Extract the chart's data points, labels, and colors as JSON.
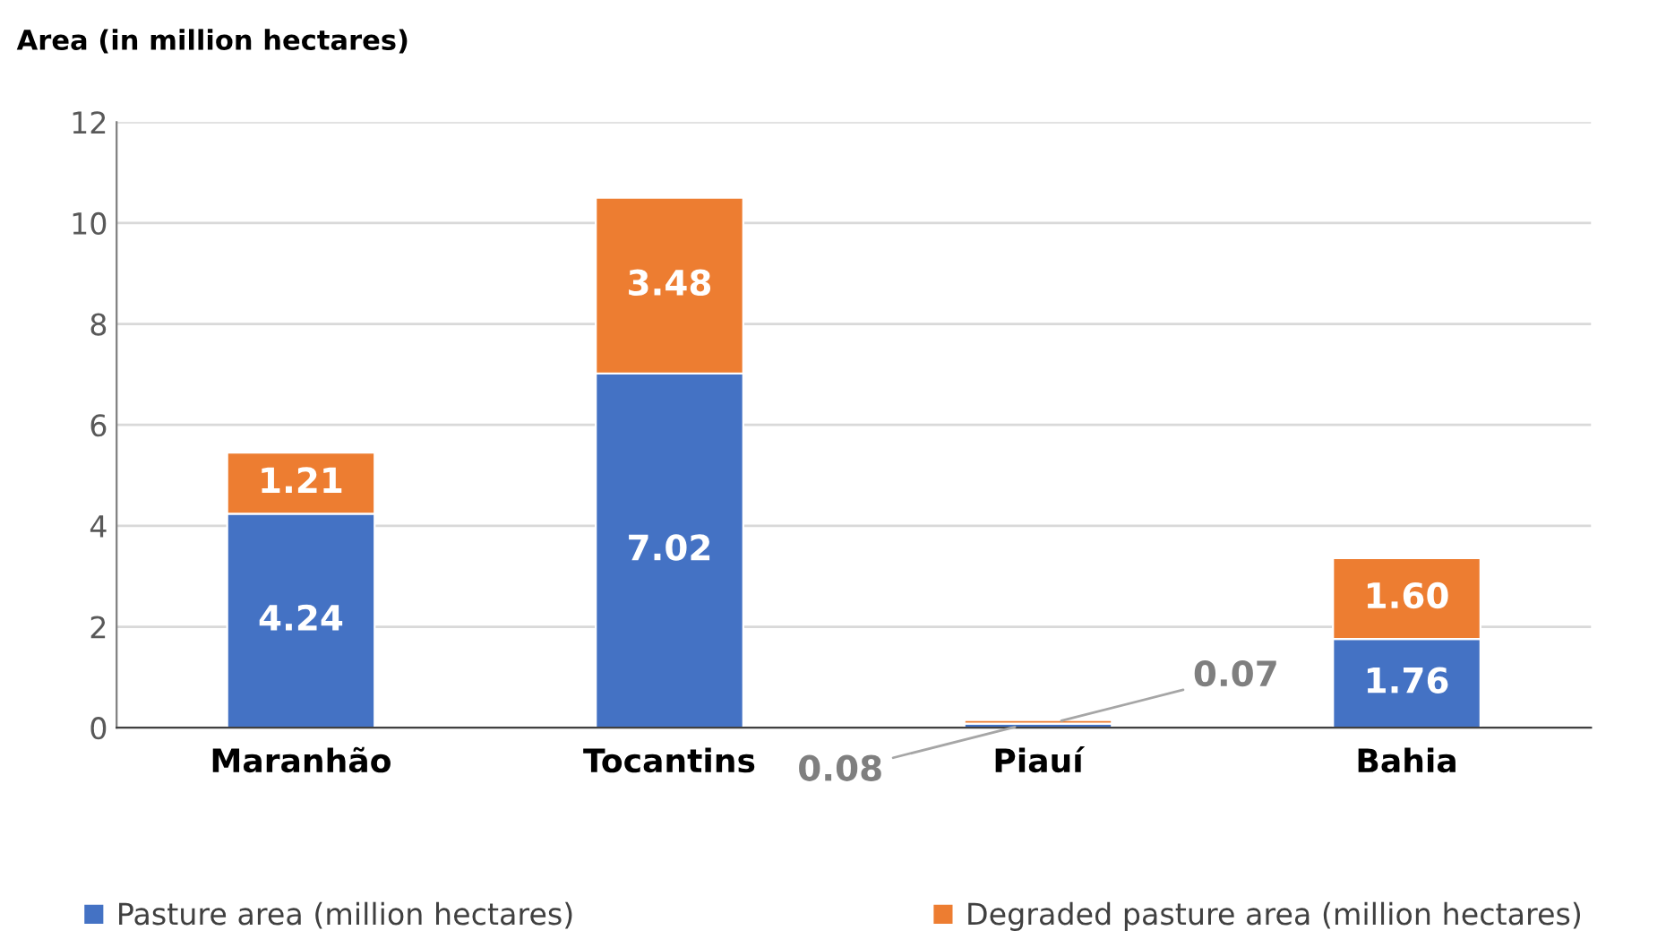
{
  "chart_data": {
    "type": "bar",
    "stacked": true,
    "ylabel": "Area (in million hectares)",
    "categories": [
      "Maranhão",
      "Tocantins",
      "Piauí",
      "Bahia"
    ],
    "series": [
      {
        "name": "Pasture area (million hectares)",
        "color": "#4472c4",
        "values": [
          4.24,
          7.02,
          0.08,
          1.76
        ],
        "value_labels": [
          "4.24",
          "7.02",
          "0.08",
          "1.76"
        ]
      },
      {
        "name": "Degraded pasture area (million hectares)",
        "color": "#ed7d31",
        "values": [
          1.21,
          3.48,
          0.07,
          1.6
        ],
        "value_labels": [
          "1.21",
          "3.48",
          "0.07",
          "1.60"
        ]
      }
    ],
    "ylim": [
      0,
      12
    ],
    "yticks": [
      0,
      2,
      4,
      6,
      8,
      10,
      12
    ],
    "grid": "y",
    "legend": "bottom"
  }
}
